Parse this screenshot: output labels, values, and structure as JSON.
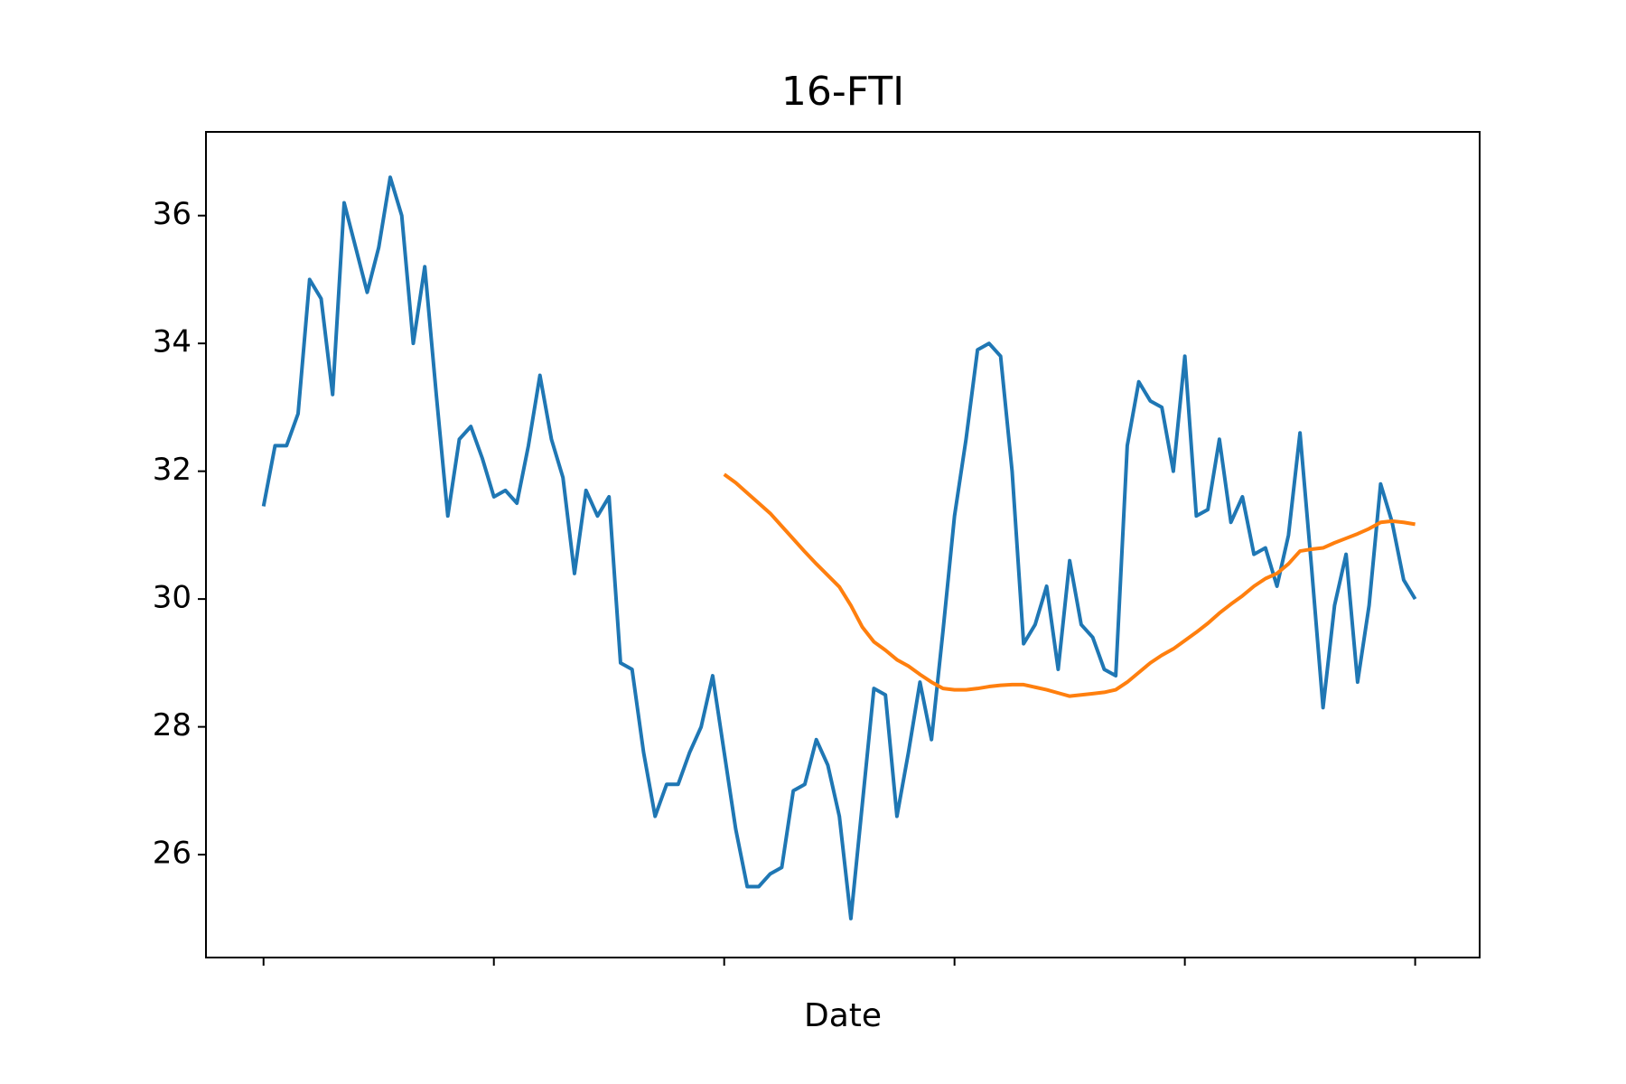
{
  "chart_data": {
    "type": "line",
    "title": "16-FTI",
    "x_label": "Date",
    "x": [
      0,
      5,
      10,
      15,
      20,
      25,
      30,
      35,
      40,
      45,
      50,
      55,
      60,
      65,
      70,
      75,
      80,
      85,
      90,
      95,
      100,
      105,
      110,
      115,
      120,
      125,
      130,
      135,
      140,
      145,
      150,
      155,
      160,
      165,
      170,
      175,
      180,
      185,
      190,
      195,
      200,
      205,
      210,
      215,
      220,
      225,
      230,
      235,
      240,
      245,
      250,
      255,
      260,
      265,
      270,
      275,
      280,
      285,
      290,
      295,
      300,
      305,
      310,
      315,
      320,
      325,
      330,
      335,
      340,
      345,
      350,
      355,
      360,
      365,
      370,
      375,
      380,
      385,
      390,
      395,
      400,
      405,
      410,
      415,
      420,
      425,
      430,
      435,
      440,
      445,
      450,
      455,
      460,
      465,
      470,
      475,
      480,
      485,
      490,
      495,
      500
    ],
    "series": [
      {
        "color": "#1f77b4",
        "values": [
          31.45,
          32.4,
          32.4,
          32.9,
          35.0,
          34.7,
          33.2,
          36.2,
          35.5,
          34.8,
          35.5,
          36.6,
          36.0,
          34.0,
          35.2,
          33.2,
          31.3,
          32.5,
          32.7,
          32.2,
          31.6,
          31.7,
          31.5,
          32.4,
          33.5,
          32.5,
          31.9,
          30.4,
          31.7,
          31.3,
          31.6,
          29.0,
          28.9,
          27.6,
          26.6,
          27.1,
          27.1,
          27.6,
          28.0,
          28.8,
          27.6,
          26.4,
          25.5,
          25.5,
          25.7,
          25.8,
          27.0,
          27.1,
          27.8,
          27.4,
          26.6,
          25.0,
          26.8,
          28.6,
          28.5,
          26.6,
          27.6,
          28.7,
          27.8,
          29.5,
          31.3,
          32.5,
          33.9,
          34.0,
          33.8,
          32.0,
          29.3,
          29.6,
          30.2,
          28.9,
          30.6,
          29.6,
          29.4,
          28.9,
          28.8,
          32.4,
          33.4,
          33.1,
          33.0,
          32.0,
          33.8,
          31.3,
          31.4,
          32.5,
          31.2,
          31.6,
          30.7,
          30.8,
          30.2,
          31.0,
          32.6,
          30.5,
          28.3,
          29.9,
          30.7,
          28.7,
          29.9,
          31.8,
          31.2,
          30.3,
          30.0
        ]
      },
      {
        "color": "#ff7f0e",
        "values": [
          null,
          null,
          null,
          null,
          null,
          null,
          null,
          null,
          null,
          null,
          null,
          null,
          null,
          null,
          null,
          null,
          null,
          null,
          null,
          null,
          null,
          null,
          null,
          null,
          null,
          null,
          null,
          null,
          null,
          null,
          null,
          null,
          null,
          null,
          null,
          null,
          null,
          null,
          null,
          null,
          31.95,
          31.82,
          31.66,
          31.5,
          31.34,
          31.14,
          30.94,
          30.74,
          30.55,
          30.37,
          30.19,
          29.9,
          29.56,
          29.33,
          29.2,
          29.05,
          28.95,
          28.82,
          28.7,
          28.6,
          28.58,
          28.58,
          28.6,
          28.63,
          28.65,
          28.66,
          28.66,
          28.62,
          28.58,
          28.53,
          28.48,
          28.5,
          28.52,
          28.54,
          28.58,
          28.7,
          28.85,
          29.0,
          29.12,
          29.22,
          29.35,
          29.48,
          29.62,
          29.78,
          29.92,
          30.05,
          30.2,
          30.32,
          30.4,
          30.55,
          30.75,
          30.78,
          30.8,
          30.88,
          30.95,
          31.02,
          31.1,
          31.2,
          31.22,
          31.2,
          31.17
        ]
      }
    ],
    "xlim": [
      -25,
      528
    ],
    "xticks": [
      0,
      100,
      200,
      300,
      400,
      500
    ],
    "ylim": [
      24.39,
      37.31
    ],
    "yticks": [
      26,
      28,
      30,
      32,
      34,
      36
    ]
  }
}
